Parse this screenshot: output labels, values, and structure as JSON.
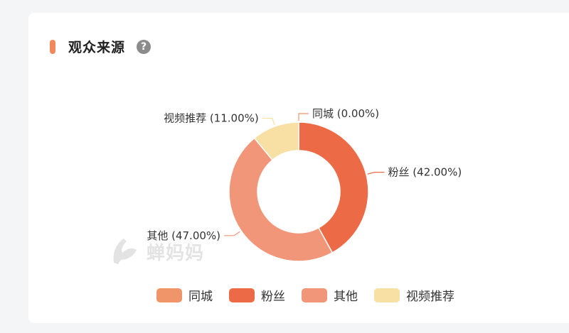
{
  "header": {
    "title": "观众来源",
    "help_glyph": "?",
    "accent_color": "#ee8a5e"
  },
  "watermark": {
    "text": "蝉妈妈"
  },
  "chart_data": {
    "type": "pie",
    "variant": "donut",
    "labels": [
      "同城",
      "粉丝",
      "其他",
      "视频推荐"
    ],
    "values": [
      0.0,
      42.0,
      47.0,
      11.0
    ],
    "label_texts": [
      "同城 (0.00%)",
      "粉丝 (42.00%)",
      "其他 (47.00%)",
      "视频推荐 (11.00%)"
    ],
    "colors": [
      "#f0956a",
      "#ec6b46",
      "#f19679",
      "#f8dfa3"
    ],
    "legend_position": "bottom"
  }
}
